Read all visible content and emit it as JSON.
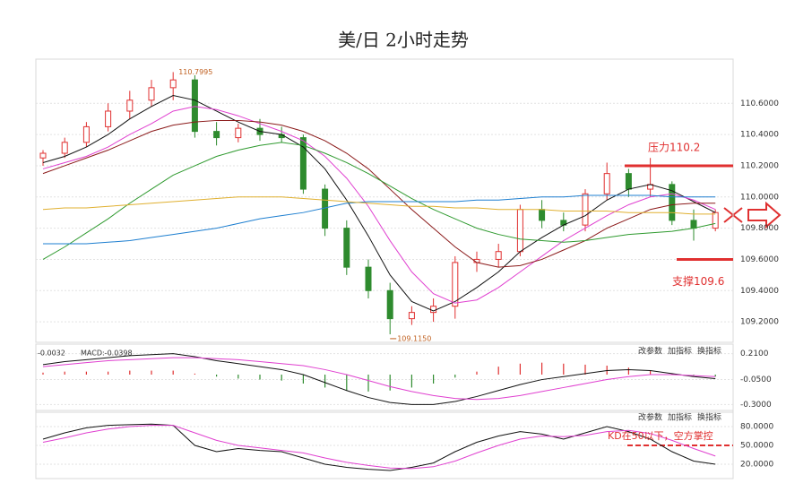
{
  "chart_data": [
    {
      "type": "candlestick",
      "title": "美/日 2小时走势",
      "candles": [
        [
          110.25,
          110.3,
          110.2,
          110.28
        ],
        [
          110.28,
          110.38,
          110.25,
          110.35
        ],
        [
          110.35,
          110.48,
          110.32,
          110.45
        ],
        [
          110.45,
          110.6,
          110.42,
          110.55
        ],
        [
          110.55,
          110.68,
          110.5,
          110.62
        ],
        [
          110.62,
          110.75,
          110.58,
          110.7
        ],
        [
          110.7,
          110.8,
          110.62,
          110.75
        ],
        [
          110.75,
          110.78,
          110.38,
          110.42
        ],
        [
          110.42,
          110.48,
          110.33,
          110.38
        ],
        [
          110.38,
          110.47,
          110.35,
          110.44
        ],
        [
          110.44,
          110.5,
          110.36,
          110.4
        ],
        [
          110.4,
          110.45,
          110.35,
          110.38
        ],
        [
          110.38,
          110.4,
          110.02,
          110.05
        ],
        [
          110.05,
          110.08,
          109.75,
          109.8
        ],
        [
          109.8,
          109.85,
          109.5,
          109.55
        ],
        [
          109.55,
          109.6,
          109.35,
          109.4
        ],
        [
          109.4,
          109.45,
          109.12,
          109.22
        ],
        [
          109.22,
          109.3,
          109.18,
          109.26
        ],
        [
          109.26,
          109.35,
          109.2,
          109.3
        ],
        [
          109.3,
          109.62,
          109.22,
          109.58
        ],
        [
          109.58,
          109.65,
          109.52,
          109.6
        ],
        [
          109.6,
          109.7,
          109.55,
          109.65
        ],
        [
          109.65,
          109.95,
          109.62,
          109.92
        ],
        [
          109.92,
          109.98,
          109.8,
          109.85
        ],
        [
          109.85,
          109.9,
          109.78,
          109.82
        ],
        [
          109.82,
          110.05,
          109.78,
          110.02
        ],
        [
          110.02,
          110.22,
          109.98,
          110.15
        ],
        [
          110.15,
          110.18,
          110.0,
          110.05
        ],
        [
          110.05,
          110.25,
          110.0,
          110.08
        ],
        [
          110.08,
          110.1,
          109.82,
          109.85
        ],
        [
          109.85,
          109.92,
          109.72,
          109.8
        ],
        [
          109.8,
          109.92,
          109.78,
          109.9
        ]
      ],
      "up_color": "#e03030",
      "down_color": "#2e8b2e",
      "series": [
        {
          "color": "#111111",
          "values": [
            110.22,
            110.26,
            110.32,
            110.4,
            110.5,
            110.58,
            110.65,
            110.62,
            110.55,
            110.48,
            110.42,
            110.4,
            110.32,
            110.18,
            109.98,
            109.75,
            109.5,
            109.33,
            109.27,
            109.33,
            109.42,
            109.52,
            109.65,
            109.74,
            109.82,
            109.88,
            109.98,
            110.05,
            110.08,
            110.04,
            109.97,
            109.9
          ]
        },
        {
          "color": "#e040d0",
          "values": [
            110.18,
            110.22,
            110.26,
            110.32,
            110.4,
            110.47,
            110.55,
            110.58,
            110.56,
            110.52,
            110.47,
            110.42,
            110.36,
            110.26,
            110.12,
            109.94,
            109.72,
            109.52,
            109.38,
            109.32,
            109.34,
            109.42,
            109.52,
            109.62,
            109.72,
            109.8,
            109.88,
            109.95,
            110.0,
            110.02,
            109.98,
            109.92
          ]
        },
        {
          "color": "#8b1a1a",
          "values": [
            110.15,
            110.2,
            110.25,
            110.3,
            110.36,
            110.42,
            110.46,
            110.48,
            110.49,
            110.49,
            110.48,
            110.46,
            110.42,
            110.36,
            110.28,
            110.18,
            110.05,
            109.92,
            109.8,
            109.68,
            109.58,
            109.55,
            109.56,
            109.6,
            109.66,
            109.72,
            109.8,
            109.86,
            109.92,
            109.95,
            109.96,
            109.96
          ]
        },
        {
          "color": "#2f9a2f",
          "values": [
            109.6,
            109.68,
            109.77,
            109.86,
            109.96,
            110.05,
            110.14,
            110.2,
            110.26,
            110.3,
            110.33,
            110.35,
            110.33,
            110.28,
            110.22,
            110.15,
            110.07,
            109.99,
            109.92,
            109.86,
            109.8,
            109.76,
            109.73,
            109.72,
            109.71,
            109.72,
            109.74,
            109.76,
            109.77,
            109.78,
            109.8,
            109.83
          ]
        },
        {
          "color": "#1e7fd0",
          "values": [
            109.7,
            109.7,
            109.7,
            109.71,
            109.72,
            109.74,
            109.76,
            109.78,
            109.8,
            109.83,
            109.86,
            109.88,
            109.9,
            109.93,
            109.96,
            109.97,
            109.97,
            109.97,
            109.97,
            109.97,
            109.98,
            109.98,
            109.99,
            110.0,
            110.0,
            110.01,
            110.01,
            110.01,
            110.01,
            110.0,
            110.0,
            110.0
          ]
        },
        {
          "color": "#e0b030",
          "values": [
            109.92,
            109.93,
            109.93,
            109.94,
            109.95,
            109.96,
            109.97,
            109.98,
            109.99,
            110.0,
            110.0,
            110.0,
            109.99,
            109.98,
            109.97,
            109.96,
            109.95,
            109.94,
            109.94,
            109.93,
            109.93,
            109.92,
            109.92,
            109.92,
            109.91,
            109.91,
            109.91,
            109.9,
            109.9,
            109.9,
            109.89,
            109.89
          ]
        }
      ],
      "high_label": 110.7995,
      "low_label": {
        "value": 109.115,
        "label": "109.1150"
      },
      "annotations": [
        {
          "text": "压力110.2",
          "value": 110.2,
          "color": "#e03030"
        },
        {
          "text": "支撑109.6",
          "value": 109.6,
          "color": "#e03030"
        }
      ],
      "ylim": [
        109.08,
        110.86
      ],
      "yticks": [
        {
          "value": 109.2,
          "label": "109.2000"
        },
        {
          "value": 109.4,
          "label": "109.4000"
        },
        {
          "value": 109.6,
          "label": "109.6000"
        },
        {
          "value": 109.8,
          "label": "109.8000"
        },
        {
          "value": 110.0,
          "label": "110.0000"
        },
        {
          "value": 110.2,
          "label": "110.2000"
        },
        {
          "value": 110.4,
          "label": "110.4000"
        },
        {
          "value": 110.6,
          "label": "110.6000"
        }
      ],
      "grid": true
    },
    {
      "type": "macd",
      "legend": [
        "-0.0032",
        "MACD:-0.0398"
      ],
      "buttons": [
        "改参数",
        "加指标",
        "换指标"
      ],
      "series": [
        {
          "color": "#111111",
          "values": [
            0.1,
            0.13,
            0.15,
            0.17,
            0.19,
            0.2,
            0.21,
            0.18,
            0.14,
            0.11,
            0.08,
            0.05,
            0.0,
            -0.08,
            -0.16,
            -0.23,
            -0.28,
            -0.3,
            -0.3,
            -0.27,
            -0.22,
            -0.16,
            -0.1,
            -0.05,
            -0.02,
            0.01,
            0.04,
            0.05,
            0.04,
            0.01,
            -0.02,
            -0.04
          ]
        },
        {
          "color": "#e040d0",
          "values": [
            0.08,
            0.1,
            0.12,
            0.14,
            0.15,
            0.16,
            0.17,
            0.17,
            0.16,
            0.15,
            0.13,
            0.11,
            0.09,
            0.05,
            0.0,
            -0.06,
            -0.12,
            -0.17,
            -0.21,
            -0.24,
            -0.25,
            -0.24,
            -0.21,
            -0.17,
            -0.13,
            -0.09,
            -0.05,
            -0.02,
            0.0,
            0.0,
            -0.01,
            -0.02
          ]
        }
      ],
      "bars": [
        0.02,
        0.03,
        0.03,
        0.03,
        0.04,
        0.04,
        0.04,
        0.01,
        -0.02,
        -0.04,
        -0.05,
        -0.06,
        -0.09,
        -0.13,
        -0.16,
        -0.17,
        -0.16,
        -0.13,
        -0.09,
        -0.03,
        0.03,
        0.08,
        0.11,
        0.12,
        0.11,
        0.1,
        0.09,
        0.07,
        0.04,
        0.01,
        -0.01,
        -0.02
      ],
      "up_color": "#e03030",
      "down_color": "#2e8b2e",
      "ylim": [
        -0.36,
        0.27
      ],
      "yticks": [
        {
          "value": 0.21,
          "label": "0.2100"
        },
        {
          "value": -0.05,
          "label": "-0.0500"
        },
        {
          "value": -0.3,
          "label": "-0.3000"
        }
      ],
      "grid": true
    },
    {
      "type": "kd",
      "buttons": [
        "改参数",
        "加指标",
        "换指标"
      ],
      "series": [
        {
          "color": "#111111",
          "values": [
            60,
            70,
            78,
            82,
            83,
            84,
            82,
            50,
            40,
            45,
            42,
            40,
            30,
            20,
            15,
            12,
            10,
            15,
            22,
            40,
            55,
            65,
            72,
            68,
            60,
            70,
            80,
            72,
            60,
            40,
            25,
            20
          ]
        },
        {
          "color": "#e040d0",
          "values": [
            55,
            62,
            70,
            76,
            80,
            82,
            82,
            70,
            58,
            50,
            46,
            42,
            38,
            30,
            23,
            18,
            14,
            13,
            16,
            25,
            38,
            50,
            60,
            65,
            64,
            66,
            72,
            74,
            69,
            58,
            45,
            33
          ]
        }
      ],
      "annotation": {
        "text": "KD在50以下，空方掌控",
        "value": 50,
        "color": "#e03030"
      },
      "ylim": [
        0,
        100
      ],
      "yticks": [
        {
          "value": 20,
          "label": "20.0000"
        },
        {
          "value": 50,
          "label": "50.0000"
        },
        {
          "value": 80,
          "label": "80.0000"
        }
      ],
      "grid": true
    }
  ]
}
